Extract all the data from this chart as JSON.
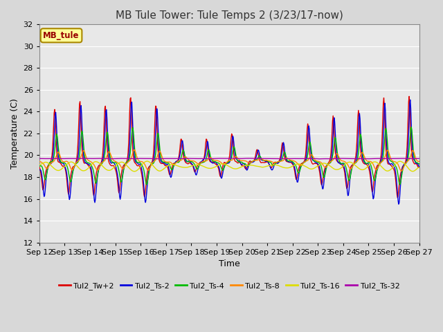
{
  "title": "MB Tule Tower: Tule Temps 2 (3/23/17-now)",
  "xlabel": "Time",
  "ylabel": "Temperature (C)",
  "ylim": [
    12,
    32
  ],
  "yticks": [
    12,
    14,
    16,
    18,
    20,
    22,
    24,
    26,
    28,
    30,
    32
  ],
  "xtick_labels": [
    "Sep 12",
    "Sep 13",
    "Sep 14",
    "Sep 15",
    "Sep 16",
    "Sep 17",
    "Sep 18",
    "Sep 19",
    "Sep 20",
    "Sep 21",
    "Sep 22",
    "Sep 23",
    "Sep 24",
    "Sep 25",
    "Sep 26",
    "Sep 27"
  ],
  "legend_label": "MB_tule",
  "series_labels": [
    "Tul2_Tw+2",
    "Tul2_Ts-2",
    "Tul2_Ts-4",
    "Tul2_Ts-8",
    "Tul2_Ts-16",
    "Tul2_Ts-32"
  ],
  "series_colors": [
    "#dd0000",
    "#0000dd",
    "#00bb00",
    "#ff8800",
    "#dddd00",
    "#aa00aa"
  ],
  "background_color": "#d8d8d8",
  "plot_bg_color": "#e8e8e8",
  "grid_color": "#ffffff",
  "title_fontsize": 11,
  "axis_fontsize": 9,
  "tick_fontsize": 8,
  "legend_box_color": "#ffff99",
  "legend_box_edge": "#aa8800"
}
